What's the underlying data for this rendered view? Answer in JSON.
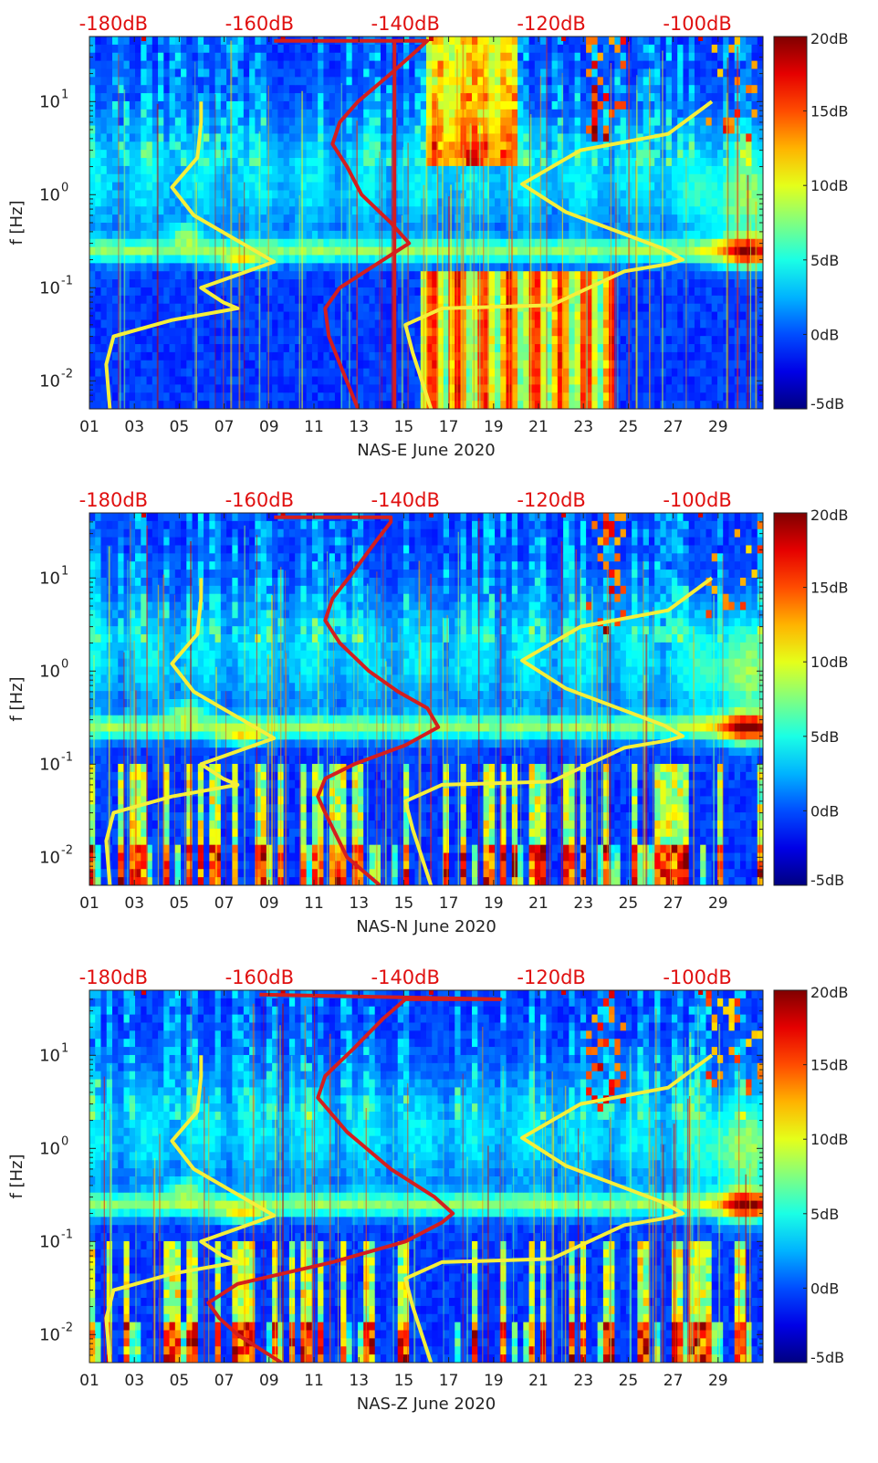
{
  "chart_data": [
    {
      "type": "heatmap",
      "xlabel": "NAS-E June 2020",
      "ylabel": "f [Hz]",
      "x_ticks": [
        "01",
        "03",
        "05",
        "07",
        "09",
        "11",
        "13",
        "15",
        "17",
        "19",
        "21",
        "23",
        "25",
        "27",
        "29"
      ],
      "y_ticks": [
        "10^-2",
        "10^-1",
        "10^0",
        "10^1"
      ],
      "y_range_hz": [
        0.005,
        50
      ],
      "y_scale": "log",
      "top_axis_ticks": [
        "-180dB",
        "-160dB",
        "-140dB",
        "-120dB",
        "-100dB"
      ],
      "colorbar_ticks": [
        "20dB",
        "15dB",
        "10dB",
        "5dB",
        "0dB",
        "-5dB"
      ],
      "colorbar_range_db": [
        -5,
        20
      ],
      "colormap": "jet",
      "overlay_colors": {
        "curves_yellow": "#f5ef3a",
        "curves_red": "#d41e1e",
        "top_axis_text": "#e01010"
      },
      "red_curve": [
        [
          -146.5,
          0.005
        ],
        [
          -150.5,
          0.03
        ],
        [
          -151,
          0.06
        ],
        [
          -149,
          0.1
        ],
        [
          -143,
          0.2
        ],
        [
          -139.5,
          0.3
        ],
        [
          -142,
          0.5
        ],
        [
          -146,
          1
        ],
        [
          -148,
          2
        ],
        [
          -150,
          3.5
        ],
        [
          -149,
          6
        ],
        [
          -146.5,
          10
        ],
        [
          -142,
          20
        ],
        [
          -138.5,
          35
        ],
        [
          -137,
          45
        ],
        [
          -158,
          45
        ]
      ],
      "red_vertical_db": -141.5,
      "yellow_left_curve": [
        [
          -180.5,
          0.005
        ],
        [
          -181,
          0.015
        ],
        [
          -180,
          0.03
        ],
        [
          -172,
          0.045
        ],
        [
          -163,
          0.06
        ],
        [
          -165,
          0.07
        ],
        [
          -168,
          0.1
        ],
        [
          -158,
          0.19
        ],
        [
          -169,
          0.6
        ],
        [
          -172,
          1.2
        ],
        [
          -168.5,
          2.5
        ],
        [
          -168,
          6
        ],
        [
          -168,
          10
        ]
      ],
      "yellow_right_curve": [
        [
          -136.5,
          0.005
        ],
        [
          -139,
          0.02
        ],
        [
          -140,
          0.04
        ],
        [
          -135,
          0.06
        ],
        [
          -120,
          0.065
        ],
        [
          -110,
          0.15
        ],
        [
          -104,
          0.18
        ],
        [
          -102,
          0.2
        ],
        [
          -104.5,
          0.26
        ],
        [
          -118,
          0.65
        ],
        [
          -124,
          1.3
        ],
        [
          -116,
          3
        ],
        [
          -104,
          4.5
        ],
        [
          -98,
          10
        ]
      ]
    },
    {
      "type": "heatmap",
      "xlabel": "NAS-N June 2020",
      "ylabel": "f [Hz]",
      "x_ticks": [
        "01",
        "03",
        "05",
        "07",
        "09",
        "11",
        "13",
        "15",
        "17",
        "19",
        "21",
        "23",
        "25",
        "27",
        "29"
      ],
      "y_ticks": [
        "10^-2",
        "10^-1",
        "10^0",
        "10^1"
      ],
      "y_range_hz": [
        0.005,
        50
      ],
      "y_scale": "log",
      "top_axis_ticks": [
        "-180dB",
        "-160dB",
        "-140dB",
        "-120dB",
        "-100dB"
      ],
      "colorbar_ticks": [
        "20dB",
        "15dB",
        "10dB",
        "5dB",
        "0dB",
        "-5dB"
      ],
      "colorbar_range_db": [
        -5,
        20
      ],
      "colormap": "jet",
      "overlay_colors": {
        "curves_yellow": "#f5ef3a",
        "curves_red": "#d41e1e",
        "top_axis_text": "#e01010"
      },
      "red_curve": [
        [
          -143.5,
          0.005
        ],
        [
          -148,
          0.01
        ],
        [
          -151,
          0.03
        ],
        [
          -152,
          0.045
        ],
        [
          -151,
          0.07
        ],
        [
          -147,
          0.1
        ],
        [
          -140,
          0.16
        ],
        [
          -135.5,
          0.25
        ],
        [
          -137,
          0.4
        ],
        [
          -141,
          0.6
        ],
        [
          -145,
          1
        ],
        [
          -149,
          2
        ],
        [
          -151,
          3.5
        ],
        [
          -150,
          6
        ],
        [
          -147,
          12
        ],
        [
          -144,
          25
        ],
        [
          -142,
          40
        ],
        [
          -142,
          45
        ],
        [
          -158,
          45
        ]
      ],
      "yellow_left_curve": [
        [
          -180.5,
          0.005
        ],
        [
          -181,
          0.015
        ],
        [
          -180,
          0.03
        ],
        [
          -172,
          0.045
        ],
        [
          -163,
          0.06
        ],
        [
          -165,
          0.07
        ],
        [
          -168,
          0.1
        ],
        [
          -158,
          0.19
        ],
        [
          -169,
          0.6
        ],
        [
          -172,
          1.2
        ],
        [
          -168.5,
          2.5
        ],
        [
          -168,
          6
        ],
        [
          -168,
          10
        ]
      ],
      "yellow_right_curve": [
        [
          -136.5,
          0.005
        ],
        [
          -139,
          0.02
        ],
        [
          -140,
          0.04
        ],
        [
          -135,
          0.06
        ],
        [
          -120,
          0.065
        ],
        [
          -110,
          0.15
        ],
        [
          -104,
          0.18
        ],
        [
          -102,
          0.2
        ],
        [
          -104.5,
          0.26
        ],
        [
          -118,
          0.65
        ],
        [
          -124,
          1.3
        ],
        [
          -116,
          3
        ],
        [
          -104,
          4.5
        ],
        [
          -98,
          10
        ]
      ]
    },
    {
      "type": "heatmap",
      "xlabel": "NAS-Z June 2020",
      "ylabel": "f [Hz]",
      "x_ticks": [
        "01",
        "03",
        "05",
        "07",
        "09",
        "11",
        "13",
        "15",
        "17",
        "19",
        "21",
        "23",
        "25",
        "27",
        "29"
      ],
      "y_ticks": [
        "10^-2",
        "10^-1",
        "10^0",
        "10^1"
      ],
      "y_range_hz": [
        0.005,
        50
      ],
      "y_scale": "log",
      "top_axis_ticks": [
        "-180dB",
        "-160dB",
        "-140dB",
        "-120dB",
        "-100dB"
      ],
      "colorbar_ticks": [
        "20dB",
        "15dB",
        "10dB",
        "5dB",
        "0dB",
        "-5dB"
      ],
      "colorbar_range_db": [
        -5,
        20
      ],
      "colormap": "jet",
      "overlay_colors": {
        "curves_yellow": "#f5ef3a",
        "curves_red": "#d41e1e",
        "top_axis_text": "#e01010"
      },
      "red_curve": [
        [
          -157,
          0.005
        ],
        [
          -163,
          0.01
        ],
        [
          -165.5,
          0.015
        ],
        [
          -167,
          0.022
        ],
        [
          -163,
          0.035
        ],
        [
          -150,
          0.06
        ],
        [
          -140,
          0.1
        ],
        [
          -135,
          0.16
        ],
        [
          -133.5,
          0.2
        ],
        [
          -136,
          0.3
        ],
        [
          -142,
          0.6
        ],
        [
          -148,
          1.5
        ],
        [
          -152,
          3.5
        ],
        [
          -151,
          6
        ],
        [
          -147,
          12
        ],
        [
          -143,
          25
        ],
        [
          -140,
          40
        ],
        [
          -127,
          40
        ],
        [
          -160,
          45
        ]
      ],
      "yellow_left_curve": [
        [
          -180.5,
          0.005
        ],
        [
          -181,
          0.015
        ],
        [
          -180,
          0.03
        ],
        [
          -172,
          0.045
        ],
        [
          -163,
          0.06
        ],
        [
          -165,
          0.07
        ],
        [
          -168,
          0.1
        ],
        [
          -158,
          0.19
        ],
        [
          -169,
          0.6
        ],
        [
          -172,
          1.2
        ],
        [
          -168.5,
          2.5
        ],
        [
          -168,
          6
        ],
        [
          -168,
          10
        ]
      ],
      "yellow_right_curve": [
        [
          -136.5,
          0.005
        ],
        [
          -139,
          0.02
        ],
        [
          -140,
          0.04
        ],
        [
          -135,
          0.06
        ],
        [
          -120,
          0.065
        ],
        [
          -110,
          0.15
        ],
        [
          -104,
          0.18
        ],
        [
          -102,
          0.2
        ],
        [
          -104.5,
          0.26
        ],
        [
          -118,
          0.65
        ],
        [
          -124,
          1.3
        ],
        [
          -116,
          3
        ],
        [
          -104,
          4.5
        ],
        [
          -98,
          10
        ]
      ]
    }
  ]
}
